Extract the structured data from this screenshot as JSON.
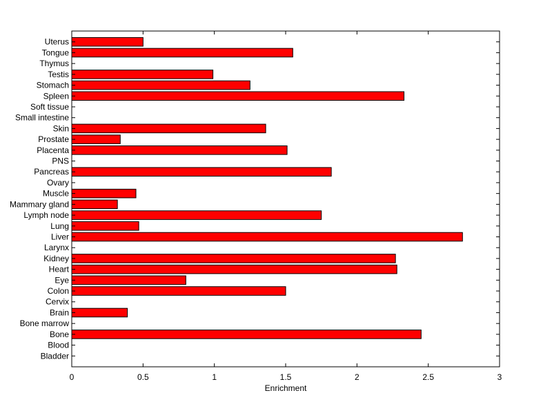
{
  "chart_data": {
    "type": "bar",
    "orientation": "horizontal",
    "categories": [
      "Bladder",
      "Blood",
      "Bone",
      "Bone marrow",
      "Brain",
      "Cervix",
      "Colon",
      "Eye",
      "Heart",
      "Kidney",
      "Larynx",
      "Liver",
      "Lung",
      "Lymph node",
      "Mammary gland",
      "Muscle",
      "Ovary",
      "Pancreas",
      "PNS",
      "Placenta",
      "Prostate",
      "Skin",
      "Small intestine",
      "Soft tissue",
      "Spleen",
      "Stomach",
      "Testis",
      "Thymus",
      "Tongue",
      "Uterus"
    ],
    "values": [
      0,
      0,
      2.45,
      0,
      0.39,
      0,
      1.5,
      0.8,
      2.28,
      2.27,
      0,
      2.74,
      0.47,
      1.75,
      0.32,
      0.45,
      0,
      1.82,
      0,
      1.51,
      0.34,
      1.36,
      0,
      0,
      2.33,
      1.25,
      0.99,
      0,
      1.55,
      0.5
    ],
    "xlabel": "Enrichment",
    "xlim": [
      0,
      3
    ],
    "xticks": [
      "0",
      "0.5",
      "1",
      "1.5",
      "2",
      "2.5",
      "3"
    ],
    "grid": false,
    "bar_color": "#ff0000"
  }
}
